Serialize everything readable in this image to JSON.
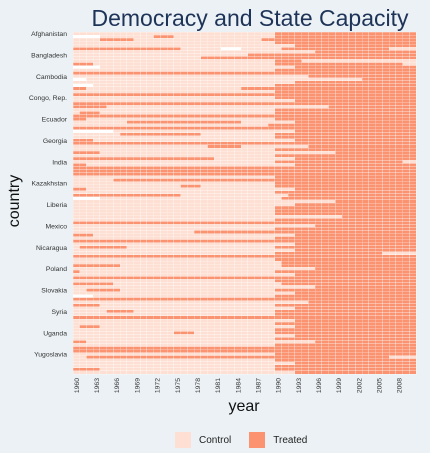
{
  "colors": {
    "control": "#fde0d3",
    "treated": "#fb9270",
    "missing": "#ffffff"
  },
  "chart_data": {
    "type": "heatmap",
    "title": "Democracy and State Capacity",
    "xlabel": "year",
    "ylabel": "country",
    "x_tick_labels": [
      "1960",
      "1963",
      "1966",
      "1969",
      "1972",
      "1975",
      "1978",
      "1981",
      "1984",
      "1987",
      "1990",
      "1993",
      "1996",
      "1999",
      "2002",
      "2005",
      "2008"
    ],
    "y_tick_labels": [
      "Afghanistan",
      "Bangladesh",
      "Cambodia",
      "Congo, Rep.",
      "Ecuador",
      "Georgia",
      "India",
      "Kazakhstan",
      "Liberia",
      "Mexico",
      "Nicaragua",
      "Poland",
      "Slovakia",
      "Syria",
      "Uganda",
      "Yugoslavia"
    ],
    "year_range": [
      1960,
      2010
    ],
    "legend": {
      "position": "bottom",
      "entries": [
        "Control",
        "Treated"
      ]
    },
    "num_countries": 112,
    "labeled_rows_every": 7,
    "rows": [
      {
        "t": [
          [
            1990,
            2010
          ]
        ],
        "m": []
      },
      {
        "t": [
          [
            1972,
            1974
          ],
          [
            1990,
            2010
          ]
        ],
        "m": [
          [
            1960,
            1963
          ]
        ]
      },
      {
        "t": [
          [
            1964,
            1968
          ],
          [
            1988,
            2010
          ]
        ],
        "m": []
      },
      {
        "t": [
          [
            1990,
            2010
          ]
        ],
        "m": []
      },
      {
        "t": [
          [
            1993,
            2010
          ]
        ],
        "m": []
      },
      {
        "t": [
          [
            1960,
            1975
          ],
          [
            1991,
            2006
          ]
        ],
        "m": [
          [
            1982,
            1984
          ]
        ]
      },
      {
        "t": [
          [
            1996,
            2010
          ]
        ],
        "m": []
      },
      {
        "t": [
          [
            1986,
            2010
          ]
        ],
        "m": []
      },
      {
        "t": [
          [
            1979,
            2010
          ]
        ],
        "m": []
      },
      {
        "t": [
          [
            1990,
            1993
          ]
        ],
        "m": []
      },
      {
        "t": [
          [
            1960,
            1962
          ],
          [
            1990,
            2008
          ]
        ],
        "m": []
      },
      {
        "t": [
          [
            1993,
            2010
          ]
        ],
        "m": [
          [
            1960,
            1963
          ]
        ]
      },
      {
        "t": [
          [
            1990,
            2010
          ]
        ],
        "m": []
      },
      {
        "t": [
          [
            1960,
            2010
          ]
        ],
        "m": []
      },
      {
        "t": [
          [
            1995,
            2010
          ]
        ],
        "m": []
      },
      {
        "t": [
          [
            2003,
            2010
          ]
        ],
        "m": [
          [
            1960,
            1961
          ]
        ]
      },
      {
        "t": [
          [
            1993,
            2010
          ]
        ],
        "m": []
      },
      {
        "t": [
          [
            1990,
            2010
          ]
        ],
        "m": [
          [
            1960,
            1962
          ]
        ]
      },
      {
        "t": [
          [
            1960,
            1961
          ],
          [
            1985,
            2010
          ]
        ],
        "m": []
      },
      {
        "t": [
          [
            1990,
            2010
          ]
        ],
        "m": []
      },
      {
        "t": [
          [
            1960,
            2010
          ]
        ],
        "m": []
      },
      {
        "t": [
          [
            1990,
            2010
          ]
        ],
        "m": []
      },
      {
        "t": [
          [
            1993,
            2010
          ]
        ],
        "m": []
      },
      {
        "t": [
          [
            1960,
            2010
          ]
        ],
        "m": []
      },
      {
        "t": [
          [
            1960,
            1964
          ],
          [
            1998,
            2010
          ]
        ],
        "m": []
      },
      {
        "t": [
          [
            1990,
            2010
          ]
        ],
        "m": []
      },
      {
        "t": [
          [
            1961,
            1963
          ],
          [
            1990,
            2010
          ]
        ],
        "m": []
      },
      {
        "t": [
          [
            1960,
            2010
          ]
        ],
        "m": []
      },
      {
        "t": [
          [
            1960,
            1961
          ],
          [
            1990,
            2010
          ]
        ],
        "m": []
      },
      {
        "t": [
          [
            1968,
            1984
          ],
          [
            1993,
            2010
          ]
        ],
        "m": []
      },
      {
        "t": [
          [
            1989,
            2010
          ]
        ],
        "m": []
      },
      {
        "t": [
          [
            1960,
            2010
          ]
        ],
        "m": []
      },
      {
        "t": [
          [
            1993,
            2010
          ]
        ],
        "m": [
          [
            1960,
            1965
          ]
        ]
      },
      {
        "t": [
          [
            1967,
            1978
          ],
          [
            1990,
            2010
          ]
        ],
        "m": []
      },
      {
        "t": [
          [
            1990,
            2010
          ]
        ],
        "m": []
      },
      {
        "t": [
          [
            1960,
            1962
          ],
          [
            1993,
            2010
          ]
        ],
        "m": []
      },
      {
        "t": [
          [
            1960,
            2010
          ]
        ],
        "m": []
      },
      {
        "t": [
          [
            1980,
            1984
          ],
          [
            1995,
            2010
          ]
        ],
        "m": []
      },
      {
        "t": [
          [
            1990,
            2010
          ]
        ],
        "m": []
      },
      {
        "t": [
          [
            1960,
            1963
          ],
          [
            1999,
            2010
          ]
        ],
        "m": []
      },
      {
        "t": [
          [
            1990,
            2010
          ]
        ],
        "m": []
      },
      {
        "t": [
          [
            1960,
            1980
          ],
          [
            1993,
            2010
          ]
        ],
        "m": []
      },
      {
        "t": [
          [
            1990,
            2008
          ]
        ],
        "m": []
      },
      {
        "t": [
          [
            1960,
            1961
          ],
          [
            1993,
            2010
          ]
        ],
        "m": []
      },
      {
        "t": [
          [
            1960,
            2010
          ]
        ],
        "m": []
      },
      {
        "t": [
          [
            1960,
            2010
          ]
        ],
        "m": []
      },
      {
        "t": [
          [
            1960,
            2010
          ]
        ],
        "m": []
      },
      {
        "t": [
          [
            1990,
            2010
          ]
        ],
        "m": []
      },
      {
        "t": [
          [
            1966,
            2010
          ]
        ],
        "m": []
      },
      {
        "t": [
          [
            1990,
            2010
          ]
        ],
        "m": []
      },
      {
        "t": [
          [
            1976,
            1978
          ],
          [
            1990,
            2010
          ]
        ],
        "m": []
      },
      {
        "t": [
          [
            1960,
            1961
          ],
          [
            1993,
            2010
          ]
        ],
        "m": []
      },
      {
        "t": [
          [
            1990,
            2010
          ]
        ],
        "m": []
      },
      {
        "t": [
          [
            1960,
            1975
          ],
          [
            1992,
            2010
          ]
        ],
        "m": []
      },
      {
        "t": [
          [
            1991,
            2010
          ]
        ],
        "m": [
          [
            1960,
            1963
          ]
        ]
      },
      {
        "t": [
          [
            1999,
            2010
          ]
        ],
        "m": []
      },
      {
        "t": [
          [
            1993,
            2010
          ]
        ],
        "m": []
      },
      {
        "t": [
          [
            1990,
            2010
          ]
        ],
        "m": []
      },
      {
        "t": [
          [
            1990,
            2010
          ]
        ],
        "m": []
      },
      {
        "t": [
          [
            1990,
            2010
          ]
        ],
        "m": []
      },
      {
        "t": [
          [
            2000,
            2010
          ]
        ],
        "m": []
      },
      {
        "t": [
          [
            1990,
            2010
          ]
        ],
        "m": []
      },
      {
        "t": [
          [
            1960,
            2010
          ]
        ],
        "m": []
      },
      {
        "t": [
          [
            1996,
            2010
          ]
        ],
        "m": []
      },
      {
        "t": [
          [
            1990,
            2010
          ]
        ],
        "m": []
      },
      {
        "t": [
          [
            1978,
            2010
          ]
        ],
        "m": []
      },
      {
        "t": [
          [
            1960,
            1962
          ],
          [
            1993,
            2010
          ]
        ],
        "m": []
      },
      {
        "t": [
          [
            1990,
            2010
          ]
        ],
        "m": []
      },
      {
        "t": [
          [
            1960,
            2010
          ]
        ],
        "m": []
      },
      {
        "t": [
          [
            1993,
            2010
          ]
        ],
        "m": []
      },
      {
        "t": [
          [
            1961,
            1967
          ],
          [
            1990,
            2010
          ]
        ],
        "m": []
      },
      {
        "t": [
          [
            1993,
            2010
          ]
        ],
        "m": []
      },
      {
        "t": [
          [
            1990,
            2005
          ]
        ],
        "m": []
      },
      {
        "t": [
          [
            1960,
            2010
          ]
        ],
        "m": []
      },
      {
        "t": [
          [
            1990,
            2010
          ]
        ],
        "m": []
      },
      {
        "t": [
          [
            1991,
            2010
          ]
        ],
        "m": []
      },
      {
        "t": [
          [
            1960,
            1966
          ],
          [
            1991,
            2010
          ]
        ],
        "m": []
      },
      {
        "t": [
          [
            1996,
            2010
          ]
        ],
        "m": []
      },
      {
        "t": [
          [
            1960,
            1960
          ],
          [
            1990,
            2010
          ]
        ],
        "m": []
      },
      {
        "t": [
          [
            1993,
            2010
          ]
        ],
        "m": []
      },
      {
        "t": [
          [
            1960,
            2010
          ]
        ],
        "m": []
      },
      {
        "t": [
          [
            1990,
            2010
          ]
        ],
        "m": []
      },
      {
        "t": [
          [
            1960,
            1965
          ],
          [
            1991,
            2010
          ]
        ],
        "m": []
      },
      {
        "t": [
          [
            1996,
            2010
          ]
        ],
        "m": []
      },
      {
        "t": [
          [
            1962,
            1966
          ],
          [
            1990,
            2010
          ]
        ],
        "m": []
      },
      {
        "t": [
          [
            1993,
            2010
          ]
        ],
        "m": []
      },
      {
        "t": [
          [
            1990,
            2010
          ]
        ],
        "m": [
          [
            1960,
            1962
          ]
        ]
      },
      {
        "t": [
          [
            1960,
            2010
          ]
        ],
        "m": []
      },
      {
        "t": [
          [
            1995,
            2010
          ]
        ],
        "m": []
      },
      {
        "t": [
          [
            1960,
            1963
          ],
          [
            1990,
            2010
          ]
        ],
        "m": []
      },
      {
        "t": [
          [
            1993,
            2010
          ]
        ],
        "m": []
      },
      {
        "t": [
          [
            1965,
            1968
          ],
          [
            1990,
            2010
          ]
        ],
        "m": []
      },
      {
        "t": [
          [
            1990,
            2010
          ]
        ],
        "m": []
      },
      {
        "t": [
          [
            1960,
            2010
          ]
        ],
        "m": []
      },
      {
        "t": [
          [
            1993,
            2010
          ]
        ],
        "m": []
      },
      {
        "t": [
          [
            1990,
            2010
          ]
        ],
        "m": []
      },
      {
        "t": [
          [
            1961,
            1963
          ],
          [
            1993,
            2010
          ]
        ],
        "m": []
      },
      {
        "t": [
          [
            1990,
            2010
          ]
        ],
        "m": []
      },
      {
        "t": [
          [
            1975,
            1977
          ],
          [
            1990,
            2010
          ]
        ],
        "m": []
      },
      {
        "t": [
          [
            1993,
            2010
          ]
        ],
        "m": []
      },
      {
        "t": [
          [
            1990,
            2010
          ]
        ],
        "m": []
      },
      {
        "t": [
          [
            1960,
            1961
          ],
          [
            1996,
            2010
          ]
        ],
        "m": []
      },
      {
        "t": [
          [
            1990,
            2010
          ]
        ],
        "m": []
      },
      {
        "t": [
          [
            1960,
            2010
          ]
        ],
        "m": []
      },
      {
        "t": [
          [
            1960,
            2010
          ]
        ],
        "m": []
      },
      {
        "t": [
          [
            1990,
            2010
          ]
        ],
        "m": []
      },
      {
        "t": [
          [
            1962,
            2006
          ]
        ],
        "m": []
      },
      {
        "t": [
          [
            1990,
            2010
          ]
        ],
        "m": []
      },
      {
        "t": [
          [
            1993,
            2010
          ]
        ],
        "m": []
      },
      {
        "t": [
          [
            1990,
            2010
          ]
        ],
        "m": []
      },
      {
        "t": [
          [
            1960,
            1963
          ],
          [
            1990,
            2010
          ]
        ],
        "m": []
      },
      {
        "t": [
          [
            1993,
            2010
          ]
        ],
        "m": []
      }
    ]
  }
}
